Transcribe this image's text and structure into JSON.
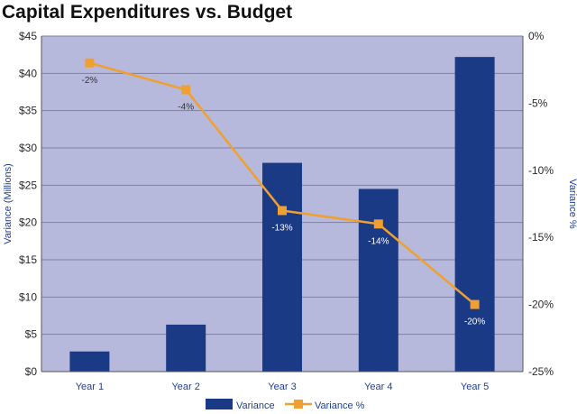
{
  "chart_data": {
    "type": "bar",
    "title": "Capital Expenditures vs. Budget",
    "categories": [
      "Year 1",
      "Year 2",
      "Year 3",
      "Year 4",
      "Year 5"
    ],
    "series": [
      {
        "name": "Variance",
        "type": "bar",
        "axis": "left",
        "values": [
          2.7,
          6.3,
          28,
          24.5,
          42.2
        ]
      },
      {
        "name": "Variance %",
        "type": "line",
        "axis": "right",
        "values": [
          -2,
          -4,
          -13,
          -14,
          -20
        ],
        "labels": [
          "-2%",
          "-4%",
          "-13%",
          "-14%",
          "-20%"
        ]
      }
    ],
    "ylabel": "Variance (Millions)",
    "y2label": "Variance %",
    "ylim": [
      0,
      45
    ],
    "y2lim": [
      -25,
      0
    ],
    "yticks": [
      "$0",
      "$5",
      "$10",
      "$15",
      "$20",
      "$25",
      "$30",
      "$35",
      "$40",
      "$45"
    ],
    "y2ticks": [
      "0%",
      "-5%",
      "-10%",
      "-15%",
      "-20%",
      "-25%"
    ],
    "grid": true,
    "legend": "bottom",
    "colors": {
      "plot_background": "#b7b9dc",
      "bar": "#1b3a86",
      "line": "#f0a030",
      "axis_label": "#1f3f8f",
      "tick_label": "#2a2a2a",
      "grid": "#7c7fa6"
    }
  }
}
